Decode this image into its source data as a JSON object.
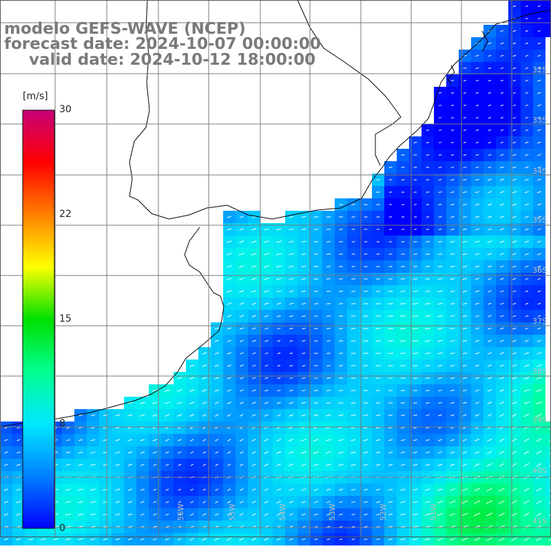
{
  "title": {
    "model": "modelo GEFS-WAVE (NCEP)",
    "forecast": "forecast date: 2024-10-07 00:00:00",
    "valid": "valid date: 2024-10-12 18:00:00"
  },
  "colorbar": {
    "units": "[m/s]",
    "ticks": [
      "30",
      "22",
      "15",
      "8",
      "0"
    ],
    "colors": [
      "#0000ff",
      "#0080ff",
      "#00e8ff",
      "#00ff90",
      "#00e000",
      "#ffff00",
      "#ff8000",
      "#ff0000",
      "#c8007a"
    ]
  },
  "axes": {
    "lat_labels": [
      "32S",
      "33S",
      "34S",
      "35S",
      "36S",
      "37S",
      "38S",
      "39S",
      "40S",
      "41S"
    ],
    "lon_labels": [
      "56W",
      "55W",
      "54W",
      "53W",
      "52W",
      "51W"
    ]
  }
}
